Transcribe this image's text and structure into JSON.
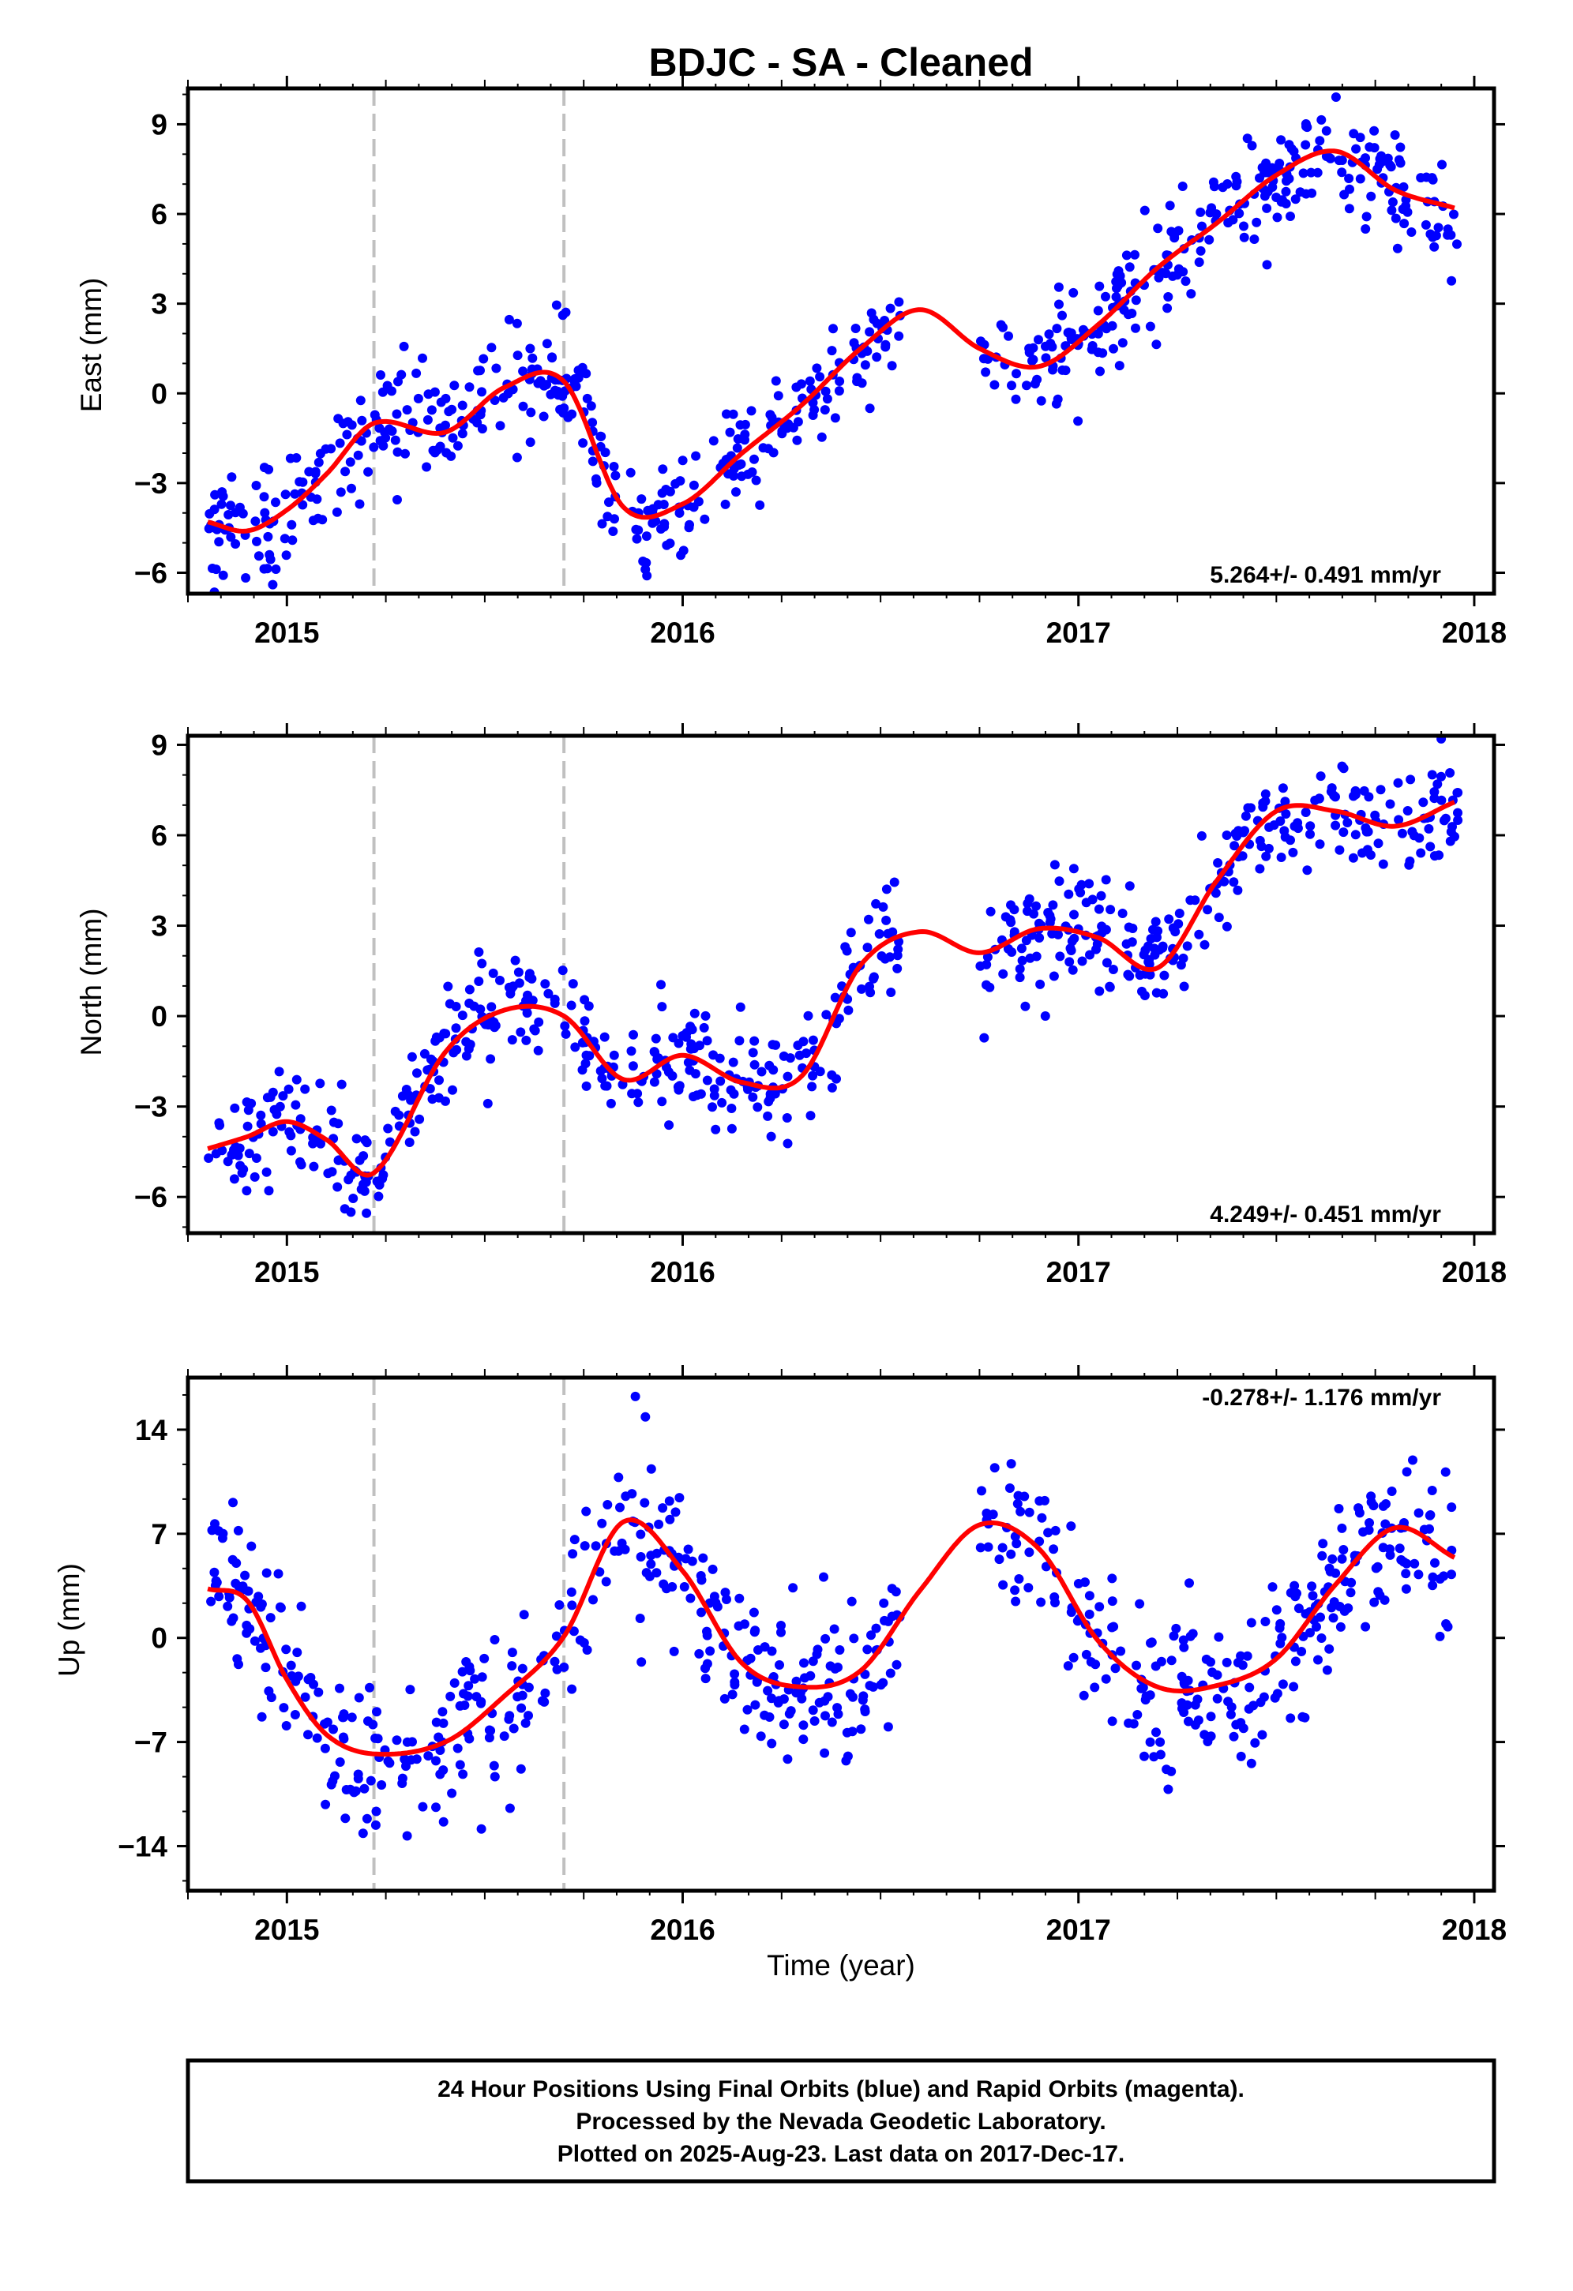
{
  "colors": {
    "data_points": "#0000ff",
    "fit_curve": "#ff0000",
    "offset_line": "#c0c0c0",
    "frame": "#000000"
  },
  "chart_data": {
    "type": "scatter",
    "title": "BDJC  - SA - Cleaned",
    "xlabel": "Time (year)",
    "x_ticks": [
      "2015",
      "2016",
      "2017",
      "2018"
    ],
    "xlim": [
      2014.75,
      2018.05
    ],
    "offsets": [
      2015.22,
      2015.7
    ],
    "data_gaps": [
      [
        2016.55,
        2016.75
      ]
    ],
    "panels": [
      {
        "name": "East",
        "ylabel": "East (mm)",
        "ylim": [
          -6.7,
          10.2
        ],
        "y_ticks": [
          -6,
          -3,
          0,
          3,
          6,
          9
        ],
        "rate_label": "5.264+/- 0.491 mm/yr",
        "rate_position": "bottom-right",
        "model": {
          "x": [
            2014.8,
            2014.9,
            2015.0,
            2015.1,
            2015.22,
            2015.4,
            2015.55,
            2015.7,
            2015.85,
            2016.0,
            2016.15,
            2016.3,
            2016.45,
            2016.6,
            2016.75,
            2016.9,
            2017.05,
            2017.2,
            2017.35,
            2017.5,
            2017.65,
            2017.8,
            2017.95
          ],
          "y": [
            -4.3,
            -4.6,
            -3.9,
            -2.7,
            -1.0,
            -1.3,
            0.2,
            0.4,
            -3.8,
            -3.7,
            -2.0,
            -0.4,
            1.5,
            2.8,
            1.5,
            0.9,
            2.3,
            4.2,
            5.7,
            7.3,
            8.1,
            6.8,
            6.2
          ]
        },
        "points": {
          "scatter_sd": 0.9
        }
      },
      {
        "name": "North",
        "ylabel": "North (mm)",
        "ylim": [
          -7.2,
          9.3
        ],
        "y_ticks": [
          -6,
          -3,
          0,
          3,
          6,
          9
        ],
        "rate_label": "4.249+/- 0.451 mm/yr",
        "rate_position": "bottom-right",
        "model": {
          "x": [
            2014.8,
            2014.9,
            2015.0,
            2015.1,
            2015.22,
            2015.4,
            2015.55,
            2015.7,
            2015.85,
            2016.0,
            2016.15,
            2016.3,
            2016.45,
            2016.6,
            2016.75,
            2016.9,
            2017.05,
            2017.2,
            2017.35,
            2017.5,
            2017.65,
            2017.8,
            2017.95
          ],
          "y": [
            -4.4,
            -4.0,
            -3.5,
            -4.1,
            -5.2,
            -1.2,
            0.2,
            0.0,
            -2.1,
            -1.3,
            -2.2,
            -2.0,
            1.7,
            2.8,
            2.1,
            2.9,
            2.6,
            1.6,
            4.5,
            6.8,
            6.8,
            6.3,
            7.1
          ]
        },
        "points": {
          "scatter_sd": 0.9
        }
      },
      {
        "name": "Up",
        "ylabel": "Up (mm)",
        "ylim": [
          -17,
          17.5
        ],
        "y_ticks": [
          -14,
          -7,
          0,
          7,
          14
        ],
        "rate_label": "-0.278+/- 1.176 mm/yr",
        "rate_position": "top-right",
        "model": {
          "x": [
            2014.8,
            2014.9,
            2015.0,
            2015.1,
            2015.22,
            2015.4,
            2015.55,
            2015.7,
            2015.85,
            2016.0,
            2016.15,
            2016.3,
            2016.45,
            2016.6,
            2016.75,
            2016.9,
            2017.05,
            2017.2,
            2017.35,
            2017.5,
            2017.65,
            2017.8,
            2017.95
          ],
          "y": [
            3.3,
            2.5,
            -2.8,
            -6.5,
            -7.8,
            -7.0,
            -3.9,
            0.1,
            7.8,
            4.5,
            -1.7,
            -3.3,
            -2.2,
            3.2,
            7.6,
            6.0,
            -0.2,
            -3.3,
            -3.2,
            -1.4,
            3.6,
            7.4,
            5.4
          ]
        },
        "points": {
          "scatter_sd": 2.6
        }
      }
    ]
  },
  "footer": {
    "line1": "24 Hour Positions Using Final Orbits (blue) and Rapid Orbits (magenta).",
    "line2": "Processed by the Nevada Geodetic Laboratory.",
    "line3": "Plotted on 2025-Aug-23. Last data on 2017-Dec-17."
  }
}
